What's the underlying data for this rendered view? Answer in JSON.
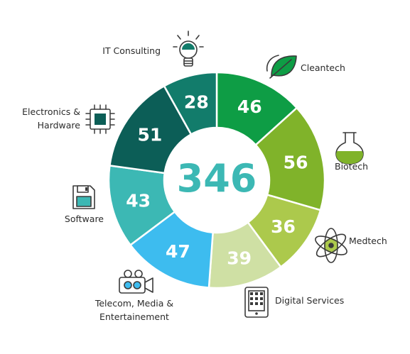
{
  "chart_data": {
    "type": "donut",
    "total": "346",
    "segments": [
      {
        "label": "Cleantech",
        "value": 46,
        "color": "#0e9d45",
        "icon": "leaf-icon"
      },
      {
        "label": "Biotech",
        "value": 56,
        "color": "#80b32a",
        "icon": "flask-icon"
      },
      {
        "label": "Medtech",
        "value": 36,
        "color": "#acc94c",
        "icon": "atom-icon"
      },
      {
        "label": "Digital Services",
        "value": 39,
        "color": "#cfe0a4",
        "icon": "tablet-icon"
      },
      {
        "label": "Telecom, Media & Entertainement",
        "value": 47,
        "color": "#3dbcef",
        "icon": "video-camera-icon"
      },
      {
        "label": "Software",
        "value": 43,
        "color": "#3cb8b4",
        "icon": "floppy-disk-icon"
      },
      {
        "label": "Electronics & Hardware",
        "value": 51,
        "color": "#0c5e57",
        "icon": "chip-icon"
      },
      {
        "label": "IT Consulting",
        "value": 28,
        "color": "#127c6b",
        "icon": "lightbulb-icon"
      }
    ],
    "total_color": "#3cb8b4"
  }
}
